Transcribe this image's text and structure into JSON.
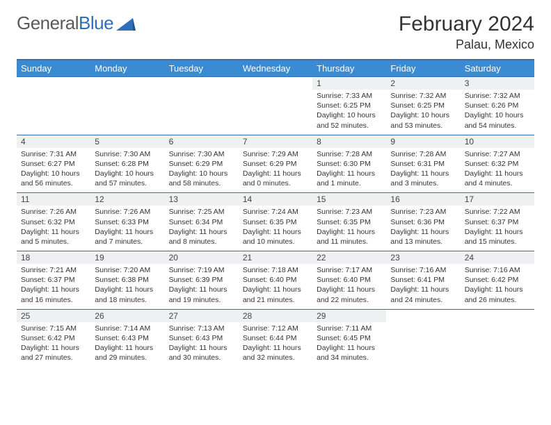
{
  "brand": {
    "textPart1": "General",
    "textPart2": "Blue",
    "triangleColor": "#2d6fb8"
  },
  "title": "February 2024",
  "location": "Palau, Mexico",
  "colors": {
    "headerBg": "#3b8bd4",
    "headerText": "#ffffff",
    "borderColor": "#2d6fb8",
    "dayNumBg": "#eef0f1",
    "textColor": "#333333"
  },
  "weekdays": [
    "Sunday",
    "Monday",
    "Tuesday",
    "Wednesday",
    "Thursday",
    "Friday",
    "Saturday"
  ],
  "weeks": [
    [
      null,
      null,
      null,
      null,
      {
        "n": "1",
        "sr": "7:33 AM",
        "ss": "6:25 PM",
        "dl": "10 hours and 52 minutes."
      },
      {
        "n": "2",
        "sr": "7:32 AM",
        "ss": "6:25 PM",
        "dl": "10 hours and 53 minutes."
      },
      {
        "n": "3",
        "sr": "7:32 AM",
        "ss": "6:26 PM",
        "dl": "10 hours and 54 minutes."
      }
    ],
    [
      {
        "n": "4",
        "sr": "7:31 AM",
        "ss": "6:27 PM",
        "dl": "10 hours and 56 minutes."
      },
      {
        "n": "5",
        "sr": "7:30 AM",
        "ss": "6:28 PM",
        "dl": "10 hours and 57 minutes."
      },
      {
        "n": "6",
        "sr": "7:30 AM",
        "ss": "6:29 PM",
        "dl": "10 hours and 58 minutes."
      },
      {
        "n": "7",
        "sr": "7:29 AM",
        "ss": "6:29 PM",
        "dl": "11 hours and 0 minutes."
      },
      {
        "n": "8",
        "sr": "7:28 AM",
        "ss": "6:30 PM",
        "dl": "11 hours and 1 minute."
      },
      {
        "n": "9",
        "sr": "7:28 AM",
        "ss": "6:31 PM",
        "dl": "11 hours and 3 minutes."
      },
      {
        "n": "10",
        "sr": "7:27 AM",
        "ss": "6:32 PM",
        "dl": "11 hours and 4 minutes."
      }
    ],
    [
      {
        "n": "11",
        "sr": "7:26 AM",
        "ss": "6:32 PM",
        "dl": "11 hours and 5 minutes."
      },
      {
        "n": "12",
        "sr": "7:26 AM",
        "ss": "6:33 PM",
        "dl": "11 hours and 7 minutes."
      },
      {
        "n": "13",
        "sr": "7:25 AM",
        "ss": "6:34 PM",
        "dl": "11 hours and 8 minutes."
      },
      {
        "n": "14",
        "sr": "7:24 AM",
        "ss": "6:35 PM",
        "dl": "11 hours and 10 minutes."
      },
      {
        "n": "15",
        "sr": "7:23 AM",
        "ss": "6:35 PM",
        "dl": "11 hours and 11 minutes."
      },
      {
        "n": "16",
        "sr": "7:23 AM",
        "ss": "6:36 PM",
        "dl": "11 hours and 13 minutes."
      },
      {
        "n": "17",
        "sr": "7:22 AM",
        "ss": "6:37 PM",
        "dl": "11 hours and 15 minutes."
      }
    ],
    [
      {
        "n": "18",
        "sr": "7:21 AM",
        "ss": "6:37 PM",
        "dl": "11 hours and 16 minutes."
      },
      {
        "n": "19",
        "sr": "7:20 AM",
        "ss": "6:38 PM",
        "dl": "11 hours and 18 minutes."
      },
      {
        "n": "20",
        "sr": "7:19 AM",
        "ss": "6:39 PM",
        "dl": "11 hours and 19 minutes."
      },
      {
        "n": "21",
        "sr": "7:18 AM",
        "ss": "6:40 PM",
        "dl": "11 hours and 21 minutes."
      },
      {
        "n": "22",
        "sr": "7:17 AM",
        "ss": "6:40 PM",
        "dl": "11 hours and 22 minutes."
      },
      {
        "n": "23",
        "sr": "7:16 AM",
        "ss": "6:41 PM",
        "dl": "11 hours and 24 minutes."
      },
      {
        "n": "24",
        "sr": "7:16 AM",
        "ss": "6:42 PM",
        "dl": "11 hours and 26 minutes."
      }
    ],
    [
      {
        "n": "25",
        "sr": "7:15 AM",
        "ss": "6:42 PM",
        "dl": "11 hours and 27 minutes."
      },
      {
        "n": "26",
        "sr": "7:14 AM",
        "ss": "6:43 PM",
        "dl": "11 hours and 29 minutes."
      },
      {
        "n": "27",
        "sr": "7:13 AM",
        "ss": "6:43 PM",
        "dl": "11 hours and 30 minutes."
      },
      {
        "n": "28",
        "sr": "7:12 AM",
        "ss": "6:44 PM",
        "dl": "11 hours and 32 minutes."
      },
      {
        "n": "29",
        "sr": "7:11 AM",
        "ss": "6:45 PM",
        "dl": "11 hours and 34 minutes."
      },
      null,
      null
    ]
  ],
  "labels": {
    "sunrise": "Sunrise: ",
    "sunset": "Sunset: ",
    "daylight": "Daylight: "
  }
}
